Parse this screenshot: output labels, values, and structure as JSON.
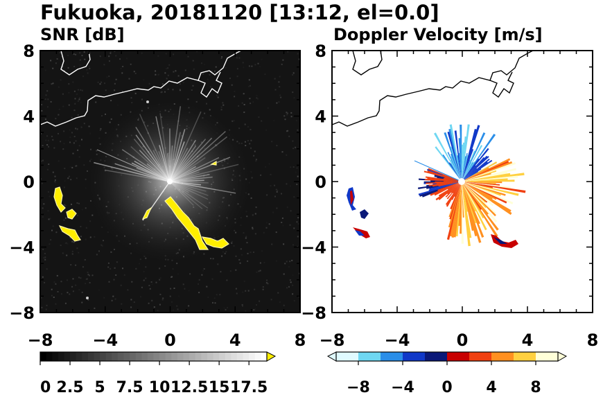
{
  "figure": {
    "title": "Fukuoka, 20181120 [13:12, el=0.0]"
  },
  "chart_data": [
    {
      "type": "heatmap",
      "title": "SNR [dB]",
      "xlim": [
        -8,
        8
      ],
      "ylim": [
        -8,
        8
      ],
      "xticks": [
        "−8",
        "−4",
        "0",
        "4",
        "8"
      ],
      "yticks": [
        "8",
        "4",
        "0",
        "−4",
        "−8"
      ],
      "colorbar": {
        "range": [
          0,
          19
        ],
        "ticks": [
          "0",
          "2.5",
          "5",
          "7.5",
          "10",
          "12.5",
          "15",
          "17.5"
        ],
        "tick_values": [
          0,
          2.5,
          5,
          7.5,
          10,
          12.5,
          15,
          17.5
        ],
        "colors": [
          "#000000",
          "#ffffff"
        ],
        "over_color": "#ffee00"
      },
      "background_color": "#141414",
      "echo_color": "#ffee00",
      "grid": false
    },
    {
      "type": "heatmap",
      "title": "Doppler Velocity [m/s]",
      "xlim": [
        -8,
        8
      ],
      "ylim": [
        -8,
        8
      ],
      "xticks": [
        "−8",
        "−4",
        "0",
        "4",
        "8"
      ],
      "yticks": [
        "8",
        "4",
        "0",
        "−4",
        "−8"
      ],
      "colorbar": {
        "range": [
          -10,
          10
        ],
        "ticks": [
          "−8",
          "−4",
          "0",
          "4",
          "8"
        ],
        "tick_values": [
          -8,
          -4,
          0,
          4,
          8
        ],
        "negative_colors": [
          "#e0faff",
          "#6fd7f2",
          "#2a8ee8",
          "#1038c8",
          "#0a1878"
        ],
        "positive_colors": [
          "#c80000",
          "#f04010",
          "#ff9020",
          "#ffd040",
          "#ffffd8"
        ]
      },
      "background_color": "#ffffff",
      "grid": false
    }
  ]
}
